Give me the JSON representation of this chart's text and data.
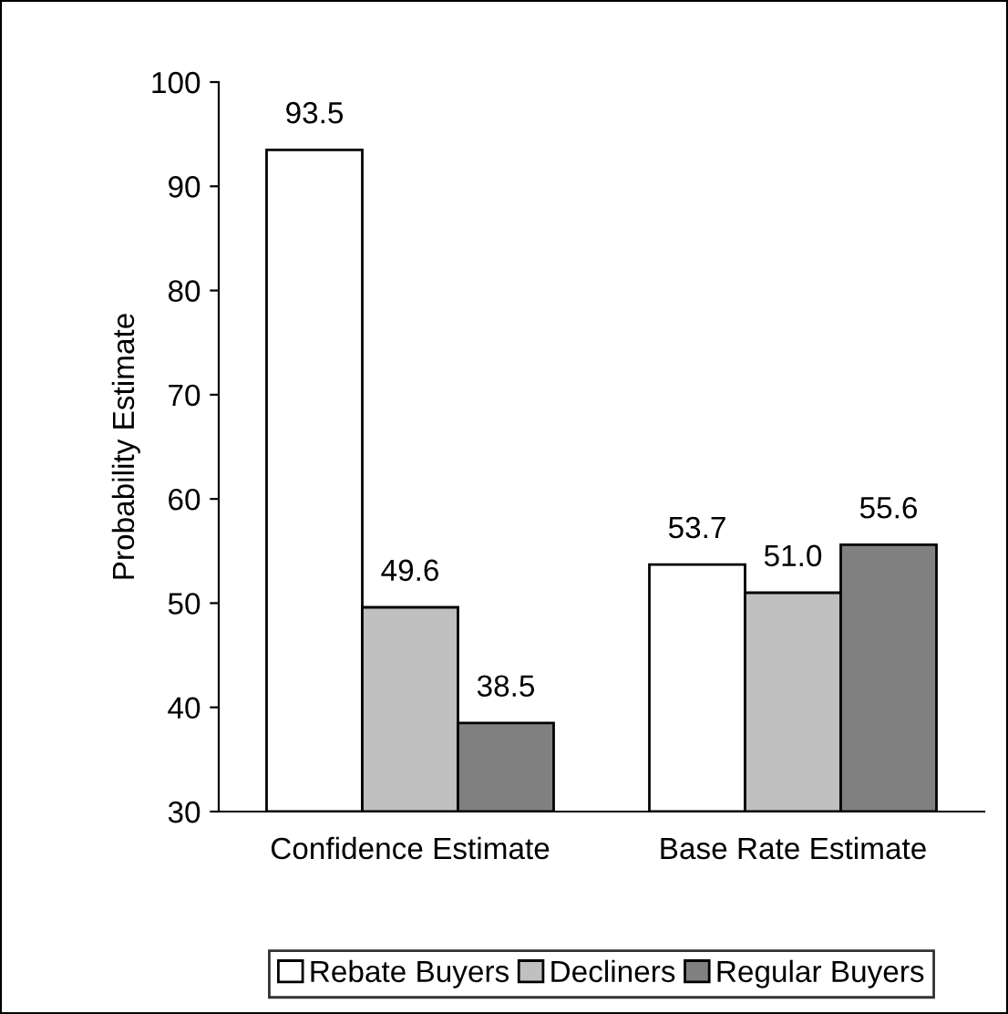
{
  "chart_data": {
    "type": "bar",
    "ylabel": "Probability Estimate",
    "categories": [
      "Confidence Estimate",
      "Base Rate Estimate"
    ],
    "series": [
      {
        "name": "Rebate Buyers",
        "color": "#ffffff",
        "values": [
          93.5,
          53.7
        ],
        "value_labels": [
          "93.5",
          "53.7"
        ]
      },
      {
        "name": "Decliners",
        "color": "#c0c0c0",
        "values": [
          49.6,
          51.0
        ],
        "value_labels": [
          "49.6",
          "51.0"
        ]
      },
      {
        "name": "Regular Buyers",
        "color": "#808080",
        "values": [
          38.5,
          55.6
        ],
        "value_labels": [
          "38.5",
          "55.6"
        ]
      }
    ],
    "ylim": [
      30,
      100
    ],
    "yticks": [
      30,
      40,
      50,
      60,
      70,
      80,
      90,
      100
    ],
    "grid": false,
    "legend": "bottom"
  }
}
